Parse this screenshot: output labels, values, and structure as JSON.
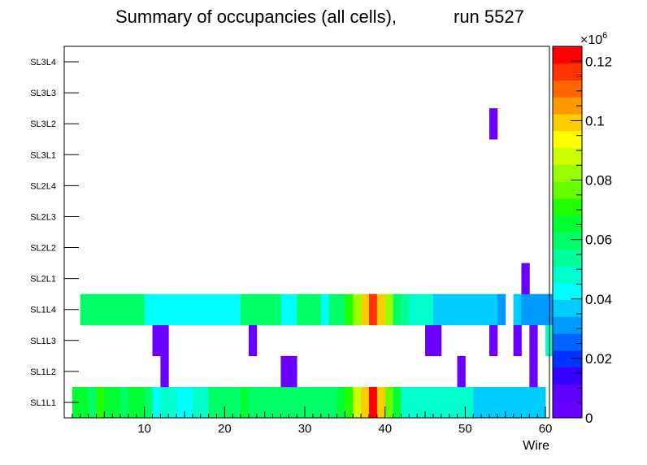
{
  "chart_data": {
    "type": "heatmap",
    "title": "Summary of occupancies (all cells),",
    "run_label": "run 5527",
    "xlabel": "Wire",
    "x_range": [
      0,
      60.5
    ],
    "x_ticks": [
      10,
      20,
      30,
      40,
      50,
      60
    ],
    "y_categories": [
      "SL1L1",
      "SL1L2",
      "SL1L3",
      "SL1L4",
      "SL2L1",
      "SL2L2",
      "SL2L3",
      "SL2L4",
      "SL3L1",
      "SL3L2",
      "SL3L3",
      "SL3L4"
    ],
    "z_label_base": "×10",
    "z_label_exp": "6",
    "z_range": [
      0,
      0.125
    ],
    "z_ticks": [
      {
        "value": 0,
        "label": "0"
      },
      {
        "value": 0.02,
        "label": "0.02"
      },
      {
        "value": 0.04,
        "label": "0.04"
      },
      {
        "value": 0.06,
        "label": "0.06"
      },
      {
        "value": 0.08,
        "label": "0.08"
      },
      {
        "value": 0.1,
        "label": "0.1"
      },
      {
        "value": 0.12,
        "label": "0.12"
      }
    ],
    "palette": [
      "#6a00ff",
      "#5d00ff",
      "#3300ff",
      "#0033ff",
      "#0066ff",
      "#0099ff",
      "#00ccff",
      "#00ffff",
      "#00ffcc",
      "#00ff99",
      "#00ff66",
      "#00ff33",
      "#22ff00",
      "#66ff00",
      "#99ff00",
      "#ccff00",
      "#ffff00",
      "#ffcc00",
      "#ff9900",
      "#ff6600",
      "#ff3300",
      "#ff0000"
    ],
    "rows": [
      {
        "row": "SL1L1",
        "values": [
          0.065,
          0.068,
          0.062,
          0.07,
          0.064,
          0.066,
          0.062,
          0.068,
          0.063,
          0.062,
          0.045,
          0.048,
          0.048,
          0.044,
          0.044,
          0.05,
          0.05,
          0.062,
          0.062,
          0.062,
          0.062,
          0.066,
          0.062,
          0.062,
          0.062,
          0.062,
          0.062,
          0.062,
          0.062,
          0.062,
          0.062,
          0.062,
          0.062,
          0.066,
          0.072,
          0.09,
          0.102,
          0.125,
          0.102,
          0.075,
          0.066,
          0.05,
          0.05,
          0.05,
          0.05,
          0.05,
          0.05,
          0.05,
          0.05,
          0.05,
          0.036,
          0.036,
          0.036,
          0.036,
          0.036,
          0.036,
          0.036,
          0.036,
          0.036,
          null
        ]
      },
      {
        "row": "SL1L2",
        "values": [
          null,
          null,
          null,
          null,
          null,
          null,
          null,
          null,
          null,
          null,
          null,
          0.003,
          null,
          null,
          null,
          null,
          null,
          null,
          null,
          null,
          null,
          null,
          null,
          null,
          null,
          null,
          0.004,
          0.004,
          null,
          null,
          null,
          null,
          null,
          null,
          null,
          null,
          null,
          null,
          null,
          null,
          null,
          null,
          null,
          null,
          null,
          null,
          null,
          null,
          0.003,
          null,
          null,
          null,
          null,
          null,
          null,
          null,
          null,
          0.003,
          null,
          null
        ]
      },
      {
        "row": "SL1L3",
        "values": [
          null,
          null,
          null,
          null,
          null,
          null,
          null,
          null,
          null,
          null,
          0.003,
          0.003,
          null,
          null,
          null,
          null,
          null,
          null,
          null,
          null,
          null,
          null,
          0.003,
          null,
          null,
          null,
          null,
          null,
          null,
          null,
          null,
          null,
          null,
          null,
          null,
          null,
          null,
          null,
          null,
          null,
          null,
          null,
          null,
          null,
          0.003,
          0.003,
          null,
          null,
          null,
          null,
          null,
          null,
          0.003,
          null,
          null,
          0.003,
          null,
          0.003,
          null,
          0.05
        ]
      },
      {
        "row": "SL1L4",
        "values": [
          null,
          0.06,
          0.06,
          0.06,
          0.06,
          0.06,
          0.06,
          0.06,
          0.06,
          0.045,
          0.045,
          0.045,
          0.045,
          0.045,
          0.045,
          0.045,
          0.045,
          0.045,
          0.045,
          0.045,
          0.045,
          0.06,
          0.06,
          0.06,
          0.06,
          0.06,
          0.045,
          0.045,
          0.06,
          0.06,
          0.06,
          0.045,
          0.06,
          0.058,
          0.072,
          0.085,
          0.1,
          0.115,
          0.1,
          0.085,
          0.062,
          0.052,
          0.05,
          0.05,
          0.048,
          0.036,
          0.036,
          0.036,
          0.036,
          0.036,
          0.036,
          0.036,
          0.036,
          0.03,
          null,
          0.036,
          0.03,
          0.03,
          0.03,
          0.03
        ]
      },
      {
        "row": "SL2L1",
        "values": [
          null,
          null,
          null,
          null,
          null,
          null,
          null,
          null,
          null,
          null,
          null,
          null,
          null,
          null,
          null,
          null,
          null,
          null,
          null,
          null,
          null,
          null,
          null,
          null,
          null,
          null,
          null,
          null,
          null,
          null,
          null,
          null,
          null,
          null,
          null,
          null,
          null,
          null,
          null,
          null,
          null,
          null,
          null,
          null,
          null,
          null,
          null,
          null,
          null,
          null,
          null,
          null,
          null,
          null,
          null,
          null,
          0.003,
          null,
          null,
          null
        ]
      },
      {
        "row": "SL2L2",
        "values": [
          null,
          null,
          null,
          null,
          null,
          null,
          null,
          null,
          null,
          null,
          null,
          null,
          null,
          null,
          null,
          null,
          null,
          null,
          null,
          null,
          null,
          null,
          null,
          null,
          null,
          null,
          null,
          null,
          null,
          null,
          null,
          null,
          null,
          null,
          null,
          null,
          null,
          null,
          null,
          null,
          null,
          null,
          null,
          null,
          null,
          null,
          null,
          null,
          null,
          null,
          null,
          null,
          null,
          null,
          null,
          null,
          null,
          null,
          null,
          null
        ]
      },
      {
        "row": "SL2L3",
        "values": [
          null,
          null,
          null,
          null,
          null,
          null,
          null,
          null,
          null,
          null,
          null,
          null,
          null,
          null,
          null,
          null,
          null,
          null,
          null,
          null,
          null,
          null,
          null,
          null,
          null,
          null,
          null,
          null,
          null,
          null,
          null,
          null,
          null,
          null,
          null,
          null,
          null,
          null,
          null,
          null,
          null,
          null,
          null,
          null,
          null,
          null,
          null,
          null,
          null,
          null,
          null,
          null,
          null,
          null,
          null,
          null,
          null,
          null,
          null,
          null
        ]
      },
      {
        "row": "SL2L4",
        "values": [
          null,
          null,
          null,
          null,
          null,
          null,
          null,
          null,
          null,
          null,
          null,
          null,
          null,
          null,
          null,
          null,
          null,
          null,
          null,
          null,
          null,
          null,
          null,
          null,
          null,
          null,
          null,
          null,
          null,
          null,
          null,
          null,
          null,
          null,
          null,
          null,
          null,
          null,
          null,
          null,
          null,
          null,
          null,
          null,
          null,
          null,
          null,
          null,
          null,
          null,
          null,
          null,
          null,
          null,
          null,
          null,
          null,
          null,
          null,
          null
        ]
      },
      {
        "row": "SL3L1",
        "values": [
          null,
          null,
          null,
          null,
          null,
          null,
          null,
          null,
          null,
          null,
          null,
          null,
          null,
          null,
          null,
          null,
          null,
          null,
          null,
          null,
          null,
          null,
          null,
          null,
          null,
          null,
          null,
          null,
          null,
          null,
          null,
          null,
          null,
          null,
          null,
          null,
          null,
          null,
          null,
          null,
          null,
          null,
          null,
          null,
          null,
          null,
          null,
          null,
          null,
          null,
          null,
          null,
          null,
          null,
          null,
          null,
          null,
          null,
          null,
          null
        ]
      },
      {
        "row": "SL3L2",
        "values": [
          null,
          null,
          null,
          null,
          null,
          null,
          null,
          null,
          null,
          null,
          null,
          null,
          null,
          null,
          null,
          null,
          null,
          null,
          null,
          null,
          null,
          null,
          null,
          null,
          null,
          null,
          null,
          null,
          null,
          null,
          null,
          null,
          null,
          null,
          null,
          null,
          null,
          null,
          null,
          null,
          null,
          null,
          null,
          null,
          null,
          null,
          null,
          null,
          null,
          null,
          null,
          null,
          0.003,
          null,
          null,
          null,
          null,
          null,
          null,
          null
        ]
      },
      {
        "row": "SL3L3",
        "values": [
          null,
          null,
          null,
          null,
          null,
          null,
          null,
          null,
          null,
          null,
          null,
          null,
          null,
          null,
          null,
          null,
          null,
          null,
          null,
          null,
          null,
          null,
          null,
          null,
          null,
          null,
          null,
          null,
          null,
          null,
          null,
          null,
          null,
          null,
          null,
          null,
          null,
          null,
          null,
          null,
          null,
          null,
          null,
          null,
          null,
          null,
          null,
          null,
          null,
          null,
          null,
          null,
          null,
          null,
          null,
          null,
          null,
          null,
          null,
          null
        ]
      },
      {
        "row": "SL3L4",
        "values": [
          null,
          null,
          null,
          null,
          null,
          null,
          null,
          null,
          null,
          null,
          null,
          null,
          null,
          null,
          null,
          null,
          null,
          null,
          null,
          null,
          null,
          null,
          null,
          null,
          null,
          null,
          null,
          null,
          null,
          null,
          null,
          null,
          null,
          null,
          null,
          null,
          null,
          null,
          null,
          null,
          null,
          null,
          null,
          null,
          null,
          null,
          null,
          null,
          null,
          null,
          null,
          null,
          null,
          null,
          null,
          null,
          null,
          null,
          null,
          null
        ]
      }
    ]
  }
}
